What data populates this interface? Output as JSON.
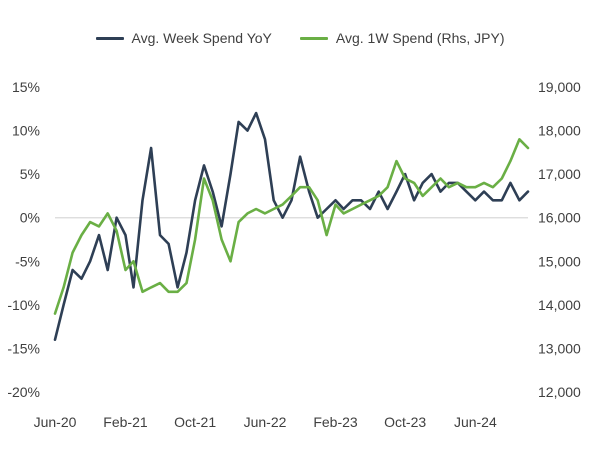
{
  "chart_data": {
    "type": "line",
    "title": "",
    "legend_position": "top-center",
    "x_tick_labels": [
      "Jun-20",
      "Feb-21",
      "Oct-21",
      "Jun-22",
      "Feb-23",
      "Oct-23",
      "Jun-24"
    ],
    "left_axis": {
      "ylim": [
        -20,
        15
      ],
      "ticks": [
        -20,
        -15,
        -10,
        -5,
        0,
        5,
        10,
        15
      ],
      "tick_labels": [
        "-20%",
        "-15%",
        "-10%",
        "-5%",
        "0%",
        "5%",
        "10%",
        "15%"
      ]
    },
    "right_axis": {
      "ylim": [
        12000,
        19000
      ],
      "ticks": [
        12000,
        13000,
        14000,
        15000,
        16000,
        17000,
        18000,
        19000
      ],
      "tick_labels": [
        "12,000",
        "13,000",
        "14,000",
        "15,000",
        "16,000",
        "17,000",
        "18,000",
        "19,000"
      ]
    },
    "zero_line": true,
    "grid": false,
    "series": [
      {
        "name": "Avg. Week Spend YoY",
        "axis": "left",
        "color": "#2E3F55",
        "x": [
          "2020-06",
          "2020-07",
          "2020-08",
          "2020-09",
          "2020-10",
          "2020-11",
          "2020-12",
          "2021-01",
          "2021-02",
          "2021-03",
          "2021-04",
          "2021-05",
          "2021-06",
          "2021-07",
          "2021-08",
          "2021-09",
          "2021-10",
          "2021-11",
          "2021-12",
          "2022-01",
          "2022-02",
          "2022-03",
          "2022-04",
          "2022-05",
          "2022-06",
          "2022-07",
          "2022-08",
          "2022-09",
          "2022-10",
          "2022-11",
          "2022-12",
          "2023-01",
          "2023-02",
          "2023-03",
          "2023-04",
          "2023-05",
          "2023-06",
          "2023-07",
          "2023-08",
          "2023-09",
          "2023-10",
          "2023-11",
          "2023-12",
          "2024-01",
          "2024-02",
          "2024-03",
          "2024-04",
          "2024-05",
          "2024-06",
          "2024-07",
          "2024-08",
          "2024-09",
          "2024-10",
          "2024-11",
          "2024-12"
        ],
        "values": [
          -14,
          -10,
          -6,
          -7,
          -5,
          -2,
          -6,
          0,
          -2,
          -8,
          2,
          8,
          -2,
          -3,
          -8,
          -4,
          2,
          6,
          3,
          -1,
          5,
          11,
          10,
          12,
          9,
          2,
          0,
          2,
          7,
          3,
          0,
          1,
          2,
          1,
          2,
          2,
          1,
          3,
          1,
          3,
          5,
          2,
          4,
          5,
          3,
          4,
          4,
          3,
          2,
          3,
          2,
          2,
          4,
          2,
          3
        ]
      },
      {
        "name": "Avg. 1W Spend (Rhs, JPY)",
        "axis": "right",
        "color": "#6AAF45",
        "x": [
          "2020-06",
          "2020-07",
          "2020-08",
          "2020-09",
          "2020-10",
          "2020-11",
          "2020-12",
          "2021-01",
          "2021-02",
          "2021-03",
          "2021-04",
          "2021-05",
          "2021-06",
          "2021-07",
          "2021-08",
          "2021-09",
          "2021-10",
          "2021-11",
          "2021-12",
          "2022-01",
          "2022-02",
          "2022-03",
          "2022-04",
          "2022-05",
          "2022-06",
          "2022-07",
          "2022-08",
          "2022-09",
          "2022-10",
          "2022-11",
          "2022-12",
          "2023-01",
          "2023-02",
          "2023-03",
          "2023-04",
          "2023-05",
          "2023-06",
          "2023-07",
          "2023-08",
          "2023-09",
          "2023-10",
          "2023-11",
          "2023-12",
          "2024-01",
          "2024-02",
          "2024-03",
          "2024-04",
          "2024-05",
          "2024-06",
          "2024-07",
          "2024-08",
          "2024-09",
          "2024-10",
          "2024-11",
          "2024-12"
        ],
        "values": [
          13800,
          14400,
          15200,
          15600,
          15900,
          15800,
          16100,
          15700,
          14800,
          15000,
          14300,
          14400,
          14500,
          14300,
          14300,
          14500,
          15500,
          16900,
          16400,
          15500,
          15000,
          15900,
          16100,
          16200,
          16100,
          16200,
          16300,
          16500,
          16700,
          16700,
          16400,
          15600,
          16300,
          16100,
          16200,
          16300,
          16400,
          16500,
          16700,
          17300,
          16900,
          16800,
          16500,
          16700,
          16900,
          16700,
          16800,
          16700,
          16700,
          16800,
          16700,
          16900,
          17300,
          17800,
          17600
        ]
      }
    ]
  }
}
